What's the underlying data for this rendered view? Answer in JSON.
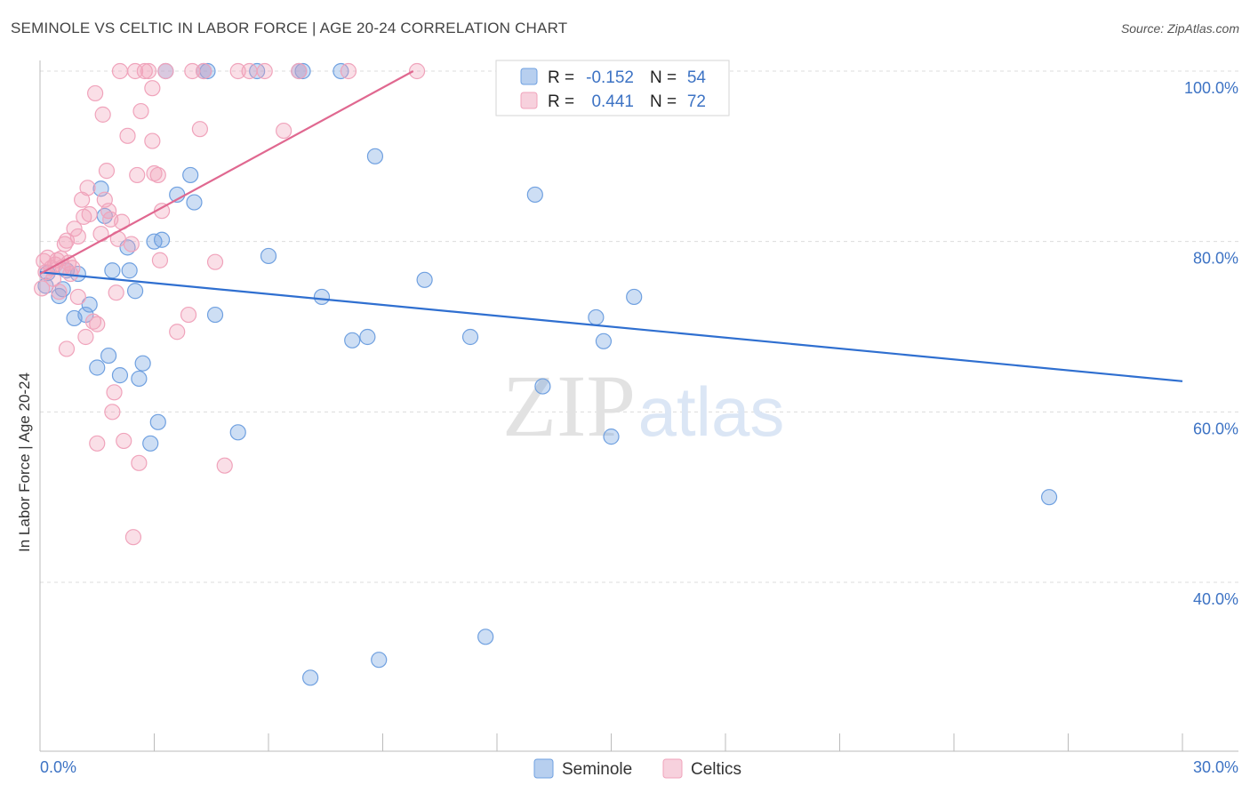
{
  "chart_data": {
    "type": "scatter",
    "title": "SEMINOLE VS CELTIC IN LABOR FORCE | AGE 20-24 CORRELATION CHART",
    "source": "Source: ZipAtlas.com",
    "ylabel": "In Labor Force | Age 20-24",
    "xlim": [
      0,
      30
    ],
    "ylim": [
      20,
      102
    ],
    "x_tick_labels": [
      "0.0%",
      "30.0%"
    ],
    "y_ticks": [
      40,
      60,
      80,
      100
    ],
    "y_tick_labels": [
      "40.0%",
      "60.0%",
      "80.0%",
      "100.0%"
    ],
    "grid": true,
    "legend_position": "top-center",
    "watermark": {
      "left": "ZIP",
      "right": "atlas"
    },
    "stats": [
      {
        "r_label": "R =",
        "r_value": "-0.152",
        "n_label": "N =",
        "n_value": "54"
      },
      {
        "r_label": "R =",
        "r_value": "0.441",
        "n_label": "N =",
        "n_value": "72"
      }
    ],
    "series": [
      {
        "name": "Seminole",
        "color": "#6fa0e0",
        "line_color": "#2f6fd0",
        "trendline": {
          "x": [
            0,
            30
          ],
          "y": [
            76.4,
            63.6
          ]
        },
        "points": [
          [
            0.15,
            74.8
          ],
          [
            0.2,
            76.3
          ],
          [
            0.5,
            73.6
          ],
          [
            0.6,
            74.4
          ],
          [
            0.9,
            71.0
          ],
          [
            1.0,
            76.2
          ],
          [
            1.2,
            71.4
          ],
          [
            1.3,
            72.6
          ],
          [
            1.5,
            65.2
          ],
          [
            1.6,
            86.2
          ],
          [
            1.7,
            83.0
          ],
          [
            1.8,
            66.6
          ],
          [
            1.9,
            76.6
          ],
          [
            2.1,
            64.3
          ],
          [
            2.3,
            79.3
          ],
          [
            2.35,
            76.6
          ],
          [
            2.5,
            74.2
          ],
          [
            2.6,
            63.9
          ],
          [
            2.7,
            65.7
          ],
          [
            2.9,
            56.3
          ],
          [
            3.0,
            80.0
          ],
          [
            3.1,
            58.8
          ],
          [
            3.2,
            80.2
          ],
          [
            3.3,
            100
          ],
          [
            3.6,
            85.5
          ],
          [
            3.95,
            87.8
          ],
          [
            4.05,
            84.6
          ],
          [
            4.4,
            100
          ],
          [
            4.6,
            71.4
          ],
          [
            5.2,
            57.6
          ],
          [
            5.7,
            100
          ],
          [
            6.0,
            78.3
          ],
          [
            6.8,
            100
          ],
          [
            7.1,
            28.8
          ],
          [
            7.4,
            73.5
          ],
          [
            7.9,
            100
          ],
          [
            8.2,
            68.4
          ],
          [
            8.6,
            68.8
          ],
          [
            8.8,
            90.0
          ],
          [
            8.9,
            30.9
          ],
          [
            10.1,
            75.5
          ],
          [
            11.3,
            68.8
          ],
          [
            11.7,
            33.6
          ],
          [
            13.0,
            85.5
          ],
          [
            13.2,
            63.0
          ],
          [
            14.6,
            71.1
          ],
          [
            14.8,
            68.3
          ],
          [
            15.0,
            57.1
          ],
          [
            15.6,
            73.5
          ],
          [
            16.2,
            100
          ],
          [
            26.5,
            50.0
          ],
          [
            6.9,
            100
          ],
          [
            4.3,
            100
          ],
          [
            0.7,
            76.6
          ]
        ]
      },
      {
        "name": "Celtics",
        "color": "#f0a3bb",
        "line_color": "#e06890",
        "trendline": {
          "x": [
            0,
            9.8
          ],
          "y": [
            76.2,
            100
          ]
        },
        "points": [
          [
            0.05,
            74.5
          ],
          [
            0.1,
            77.7
          ],
          [
            0.15,
            76.4
          ],
          [
            0.2,
            78.1
          ],
          [
            0.3,
            76.9
          ],
          [
            0.35,
            75.6
          ],
          [
            0.4,
            77.3
          ],
          [
            0.45,
            77.8
          ],
          [
            0.5,
            74.1
          ],
          [
            0.6,
            77.0
          ],
          [
            0.65,
            79.7
          ],
          [
            0.7,
            80.1
          ],
          [
            0.7,
            67.4
          ],
          [
            0.75,
            77.5
          ],
          [
            0.8,
            76.2
          ],
          [
            0.85,
            76.9
          ],
          [
            0.9,
            81.5
          ],
          [
            1.0,
            80.6
          ],
          [
            1.0,
            73.5
          ],
          [
            1.1,
            84.9
          ],
          [
            1.15,
            82.9
          ],
          [
            1.2,
            68.8
          ],
          [
            1.25,
            86.3
          ],
          [
            1.3,
            83.2
          ],
          [
            1.4,
            70.6
          ],
          [
            1.45,
            97.4
          ],
          [
            1.5,
            70.3
          ],
          [
            1.5,
            56.3
          ],
          [
            1.6,
            80.9
          ],
          [
            1.65,
            94.9
          ],
          [
            1.7,
            84.9
          ],
          [
            1.75,
            88.3
          ],
          [
            1.8,
            83.6
          ],
          [
            1.85,
            82.6
          ],
          [
            1.9,
            60.0
          ],
          [
            1.95,
            62.3
          ],
          [
            2.0,
            74.0
          ],
          [
            2.05,
            80.3
          ],
          [
            2.1,
            100
          ],
          [
            2.15,
            82.3
          ],
          [
            2.2,
            56.6
          ],
          [
            2.3,
            92.4
          ],
          [
            2.4,
            79.7
          ],
          [
            2.45,
            45.3
          ],
          [
            2.5,
            100
          ],
          [
            2.55,
            87.8
          ],
          [
            2.6,
            54.0
          ],
          [
            2.65,
            95.3
          ],
          [
            2.75,
            100
          ],
          [
            2.85,
            100
          ],
          [
            2.95,
            98.0
          ],
          [
            2.95,
            91.8
          ],
          [
            3.0,
            88.0
          ],
          [
            3.1,
            87.8
          ],
          [
            3.15,
            77.8
          ],
          [
            3.2,
            83.6
          ],
          [
            3.6,
            69.4
          ],
          [
            3.9,
            71.4
          ],
          [
            4.0,
            100
          ],
          [
            4.2,
            93.2
          ],
          [
            4.3,
            100
          ],
          [
            4.6,
            77.6
          ],
          [
            4.85,
            53.7
          ],
          [
            5.2,
            100
          ],
          [
            5.5,
            100
          ],
          [
            6.4,
            93.0
          ],
          [
            6.8,
            100
          ],
          [
            8.1,
            100
          ],
          [
            9.9,
            100
          ],
          [
            3.3,
            100
          ],
          [
            5.9,
            100
          ],
          [
            0.55,
            78.0
          ]
        ]
      }
    ]
  }
}
